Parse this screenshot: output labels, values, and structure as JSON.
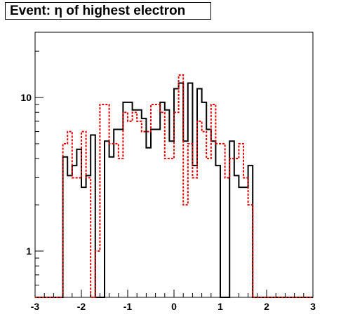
{
  "chart_data": {
    "type": "histogram",
    "title": "Event: η of highest electron",
    "xlabel": "",
    "ylabel": "",
    "xlim": [
      -3,
      3
    ],
    "ylim": [
      0.55,
      24
    ],
    "y_scale": "log",
    "x_ticks": [
      -3,
      -2,
      -1,
      0,
      1,
      2,
      3
    ],
    "x_tick_labels": [
      "-3",
      "-2",
      "-1",
      "0",
      "1",
      "2",
      "3"
    ],
    "y_ticks": [
      1,
      10
    ],
    "y_tick_labels": [
      "1",
      "10"
    ],
    "bin_edges": [
      -3.0,
      -2.9,
      -2.8,
      -2.7,
      -2.6,
      -2.5,
      -2.4,
      -2.3,
      -2.2,
      -2.1,
      -2.0,
      -1.9,
      -1.8,
      -1.7,
      -1.6,
      -1.5,
      -1.4,
      -1.3,
      -1.2,
      -1.1,
      -1.0,
      -0.9,
      -0.8,
      -0.7,
      -0.6,
      -0.5,
      -0.4,
      -0.3,
      -0.2,
      -0.1,
      0.0,
      0.1,
      0.2,
      0.3,
      0.4,
      0.5,
      0.6,
      0.7,
      0.8,
      0.9,
      1.0,
      1.1,
      1.2,
      1.3,
      1.4,
      1.5,
      1.6,
      1.7,
      1.8,
      1.9,
      2.0,
      2.1,
      2.2,
      2.3,
      2.4,
      2.5,
      2.6,
      2.7,
      2.8,
      2.9,
      3.0
    ],
    "grid": false,
    "legend": "none",
    "series": [
      {
        "style": "solid",
        "color": "#000000",
        "values": [
          0,
          0,
          0,
          0,
          0,
          0,
          4.1,
          3.1,
          3.6,
          4.6,
          2.6,
          3.1,
          5.7,
          0,
          0,
          5.2,
          4.1,
          6.2,
          6.2,
          9.3,
          9.3,
          8.3,
          8.3,
          7.3,
          4.7,
          6.2,
          6.2,
          9.3,
          8.3,
          5.2,
          11.4,
          12.4,
          5.2,
          12.4,
          3.6,
          11.4,
          9.3,
          6.2,
          5.2,
          3.6,
          0,
          0,
          5.2,
          3.1,
          2.6,
          2.6,
          3.6,
          0,
          0,
          0,
          0,
          0,
          0,
          0,
          0,
          0,
          0,
          0,
          0,
          0
        ]
      },
      {
        "style": "dashed",
        "color": "#e00000",
        "values": [
          0,
          0,
          0,
          0,
          0,
          0,
          5.0,
          6.0,
          3.0,
          3.0,
          6.0,
          3.0,
          0,
          1.0,
          9.0,
          9.0,
          5.0,
          5.0,
          4.0,
          8.0,
          7.0,
          8.0,
          7.0,
          6.0,
          6.0,
          9.0,
          9.0,
          8.0,
          4.0,
          4.0,
          8.0,
          14.0,
          2.0,
          5.0,
          3.0,
          7.0,
          6.0,
          4.0,
          9.0,
          5.0,
          5.0,
          3.0,
          4.0,
          4.0,
          5.0,
          3.0,
          2.0,
          0,
          0,
          0,
          0,
          0,
          0,
          0,
          0,
          0,
          0,
          0,
          0,
          0
        ]
      }
    ]
  }
}
